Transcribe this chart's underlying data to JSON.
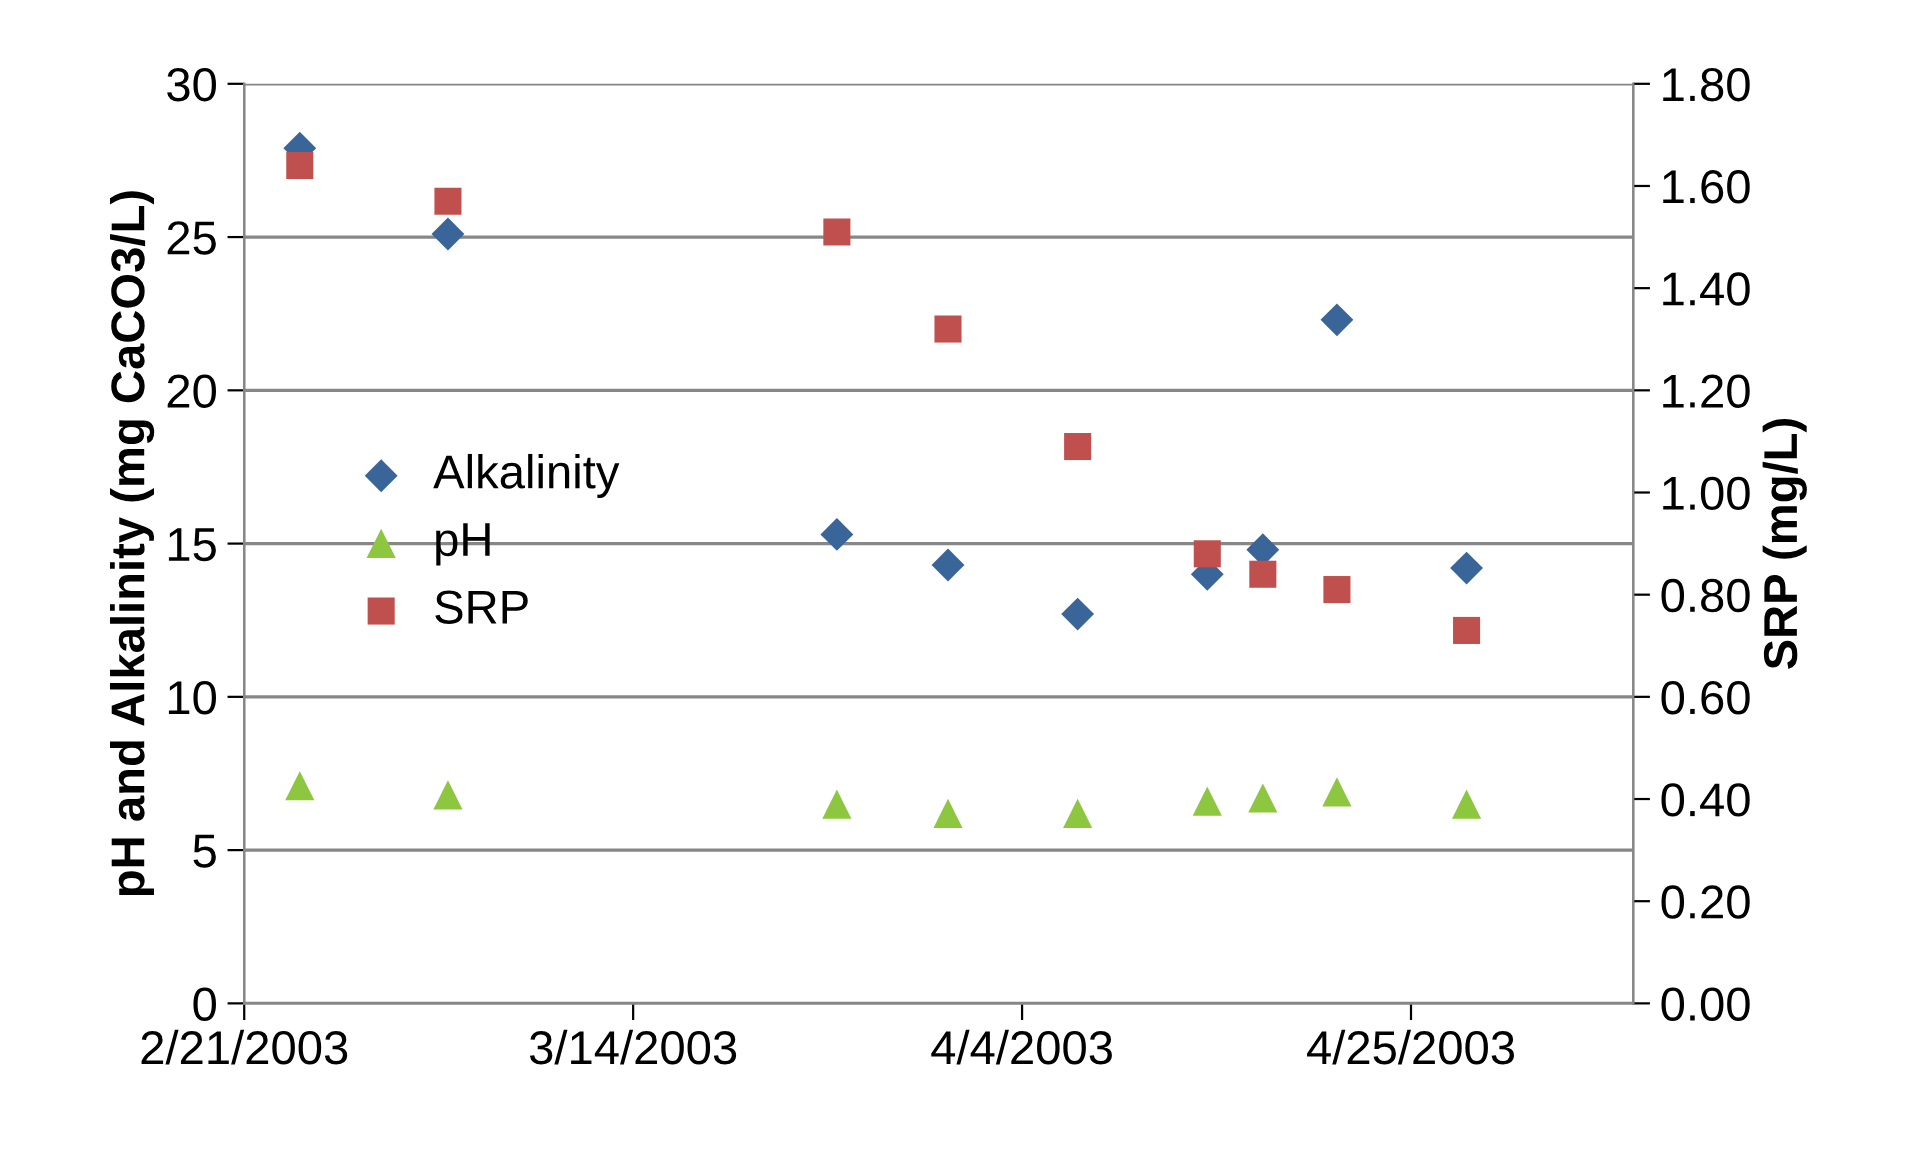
{
  "chart_data": {
    "type": "scatter",
    "ylabel": "pH and Alkalinity (mg CaCO3/L)",
    "y2label": "SRP (mg/L)",
    "x": [
      "2003-02-24",
      "2003-03-04",
      "2003-03-25",
      "2003-03-31",
      "2003-04-07",
      "2003-04-14",
      "2003-04-17",
      "2003-04-21",
      "2003-04-28"
    ],
    "series": [
      {
        "name": "Alkalinity",
        "color": "#3a6598",
        "marker": "diamond",
        "values": [
          27.9,
          25.1,
          15.3,
          14.3,
          12.7,
          14.0,
          14.8,
          22.3,
          14.2
        ]
      },
      {
        "name": "pH",
        "color": "#8dc63f",
        "marker": "triangle",
        "values": [
          7.1,
          6.8,
          6.5,
          6.2,
          6.2,
          6.6,
          6.7,
          6.9,
          6.5
        ]
      },
      {
        "name": "SRP",
        "color": "#c0504d",
        "marker": "square",
        "axis": "y2",
        "values": [
          1.64,
          1.57,
          1.51,
          1.32,
          1.09,
          0.88,
          0.84,
          0.81,
          0.73
        ]
      }
    ],
    "xlim": [
      "2003-02-21",
      "2003-05-07"
    ],
    "xticks": [
      {
        "value": "2003-02-21",
        "label": "2/21/2003"
      },
      {
        "value": "2003-03-14",
        "label": "3/14/2003"
      },
      {
        "value": "2003-04-04",
        "label": "4/4/2003"
      },
      {
        "value": "2003-04-25",
        "label": "4/25/2003"
      }
    ],
    "ylim": [
      0,
      30
    ],
    "yticks": [
      0,
      5,
      10,
      15,
      20,
      25,
      30
    ],
    "y2lim": [
      0,
      1.8
    ],
    "y2ticks": [
      {
        "value": 0,
        "label": "0.00"
      },
      {
        "value": 0.2,
        "label": "0.20"
      },
      {
        "value": 0.4,
        "label": "0.40"
      },
      {
        "value": 0.6,
        "label": "0.60"
      },
      {
        "value": 0.8,
        "label": "0.80"
      },
      {
        "value": 1.0,
        "label": "1.00"
      },
      {
        "value": 1.2,
        "label": "1.20"
      },
      {
        "value": 1.4,
        "label": "1.40"
      },
      {
        "value": 1.6,
        "label": "1.60"
      },
      {
        "value": 1.8,
        "label": "1.80"
      }
    ],
    "grid": "y",
    "legend": "center left"
  }
}
